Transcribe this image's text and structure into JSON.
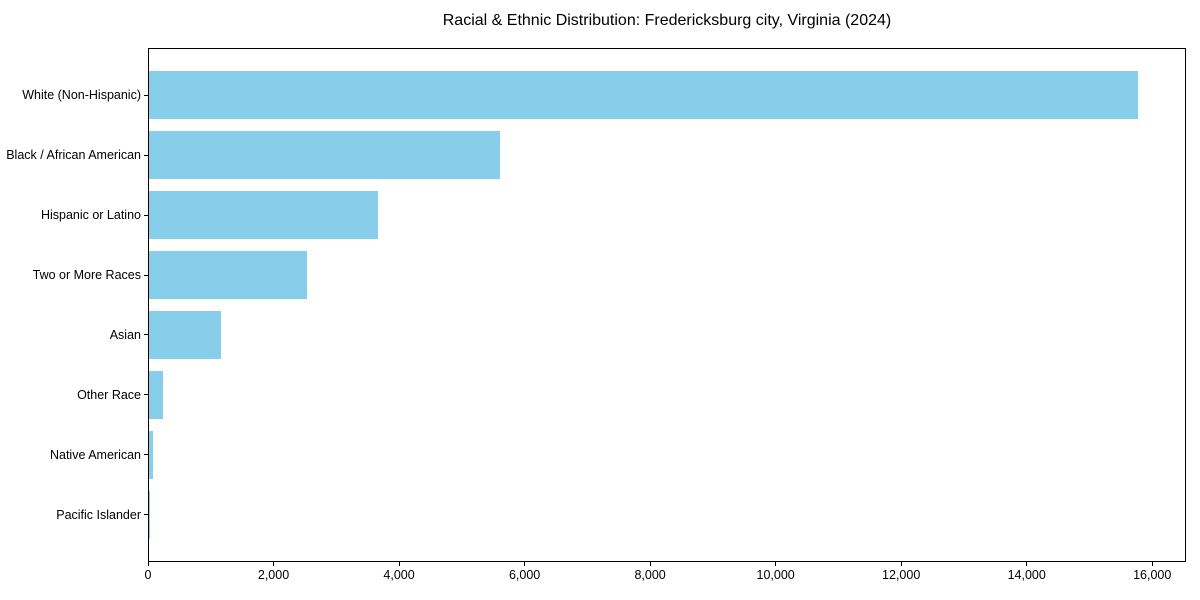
{
  "figure": {
    "background": "#ffffff"
  },
  "chart_data": {
    "type": "bar",
    "orientation": "horizontal",
    "title": "Racial & Ethnic Distribution: Fredericksburg city, Virginia (2024)",
    "categories": [
      "White (Non-Hispanic)",
      "Black / African American",
      "Hispanic or Latino",
      "Two or More Races",
      "Asian",
      "Other Race",
      "Native American",
      "Pacific Islander"
    ],
    "values": [
      15750,
      5600,
      3650,
      2510,
      1150,
      230,
      65,
      10
    ],
    "xlabel": "",
    "ylabel": "",
    "xlim": [
      0,
      16538
    ],
    "x_ticks": [
      0,
      2000,
      4000,
      6000,
      8000,
      10000,
      12000,
      14000,
      16000
    ],
    "x_tick_labels": [
      "0",
      "2,000",
      "4,000",
      "6,000",
      "8,000",
      "10,000",
      "12,000",
      "14,000",
      "16,000"
    ],
    "bar_color": "#87CEEB",
    "axis_color": "#000000",
    "text_color": "#000000",
    "grid": false,
    "legend": "none"
  }
}
